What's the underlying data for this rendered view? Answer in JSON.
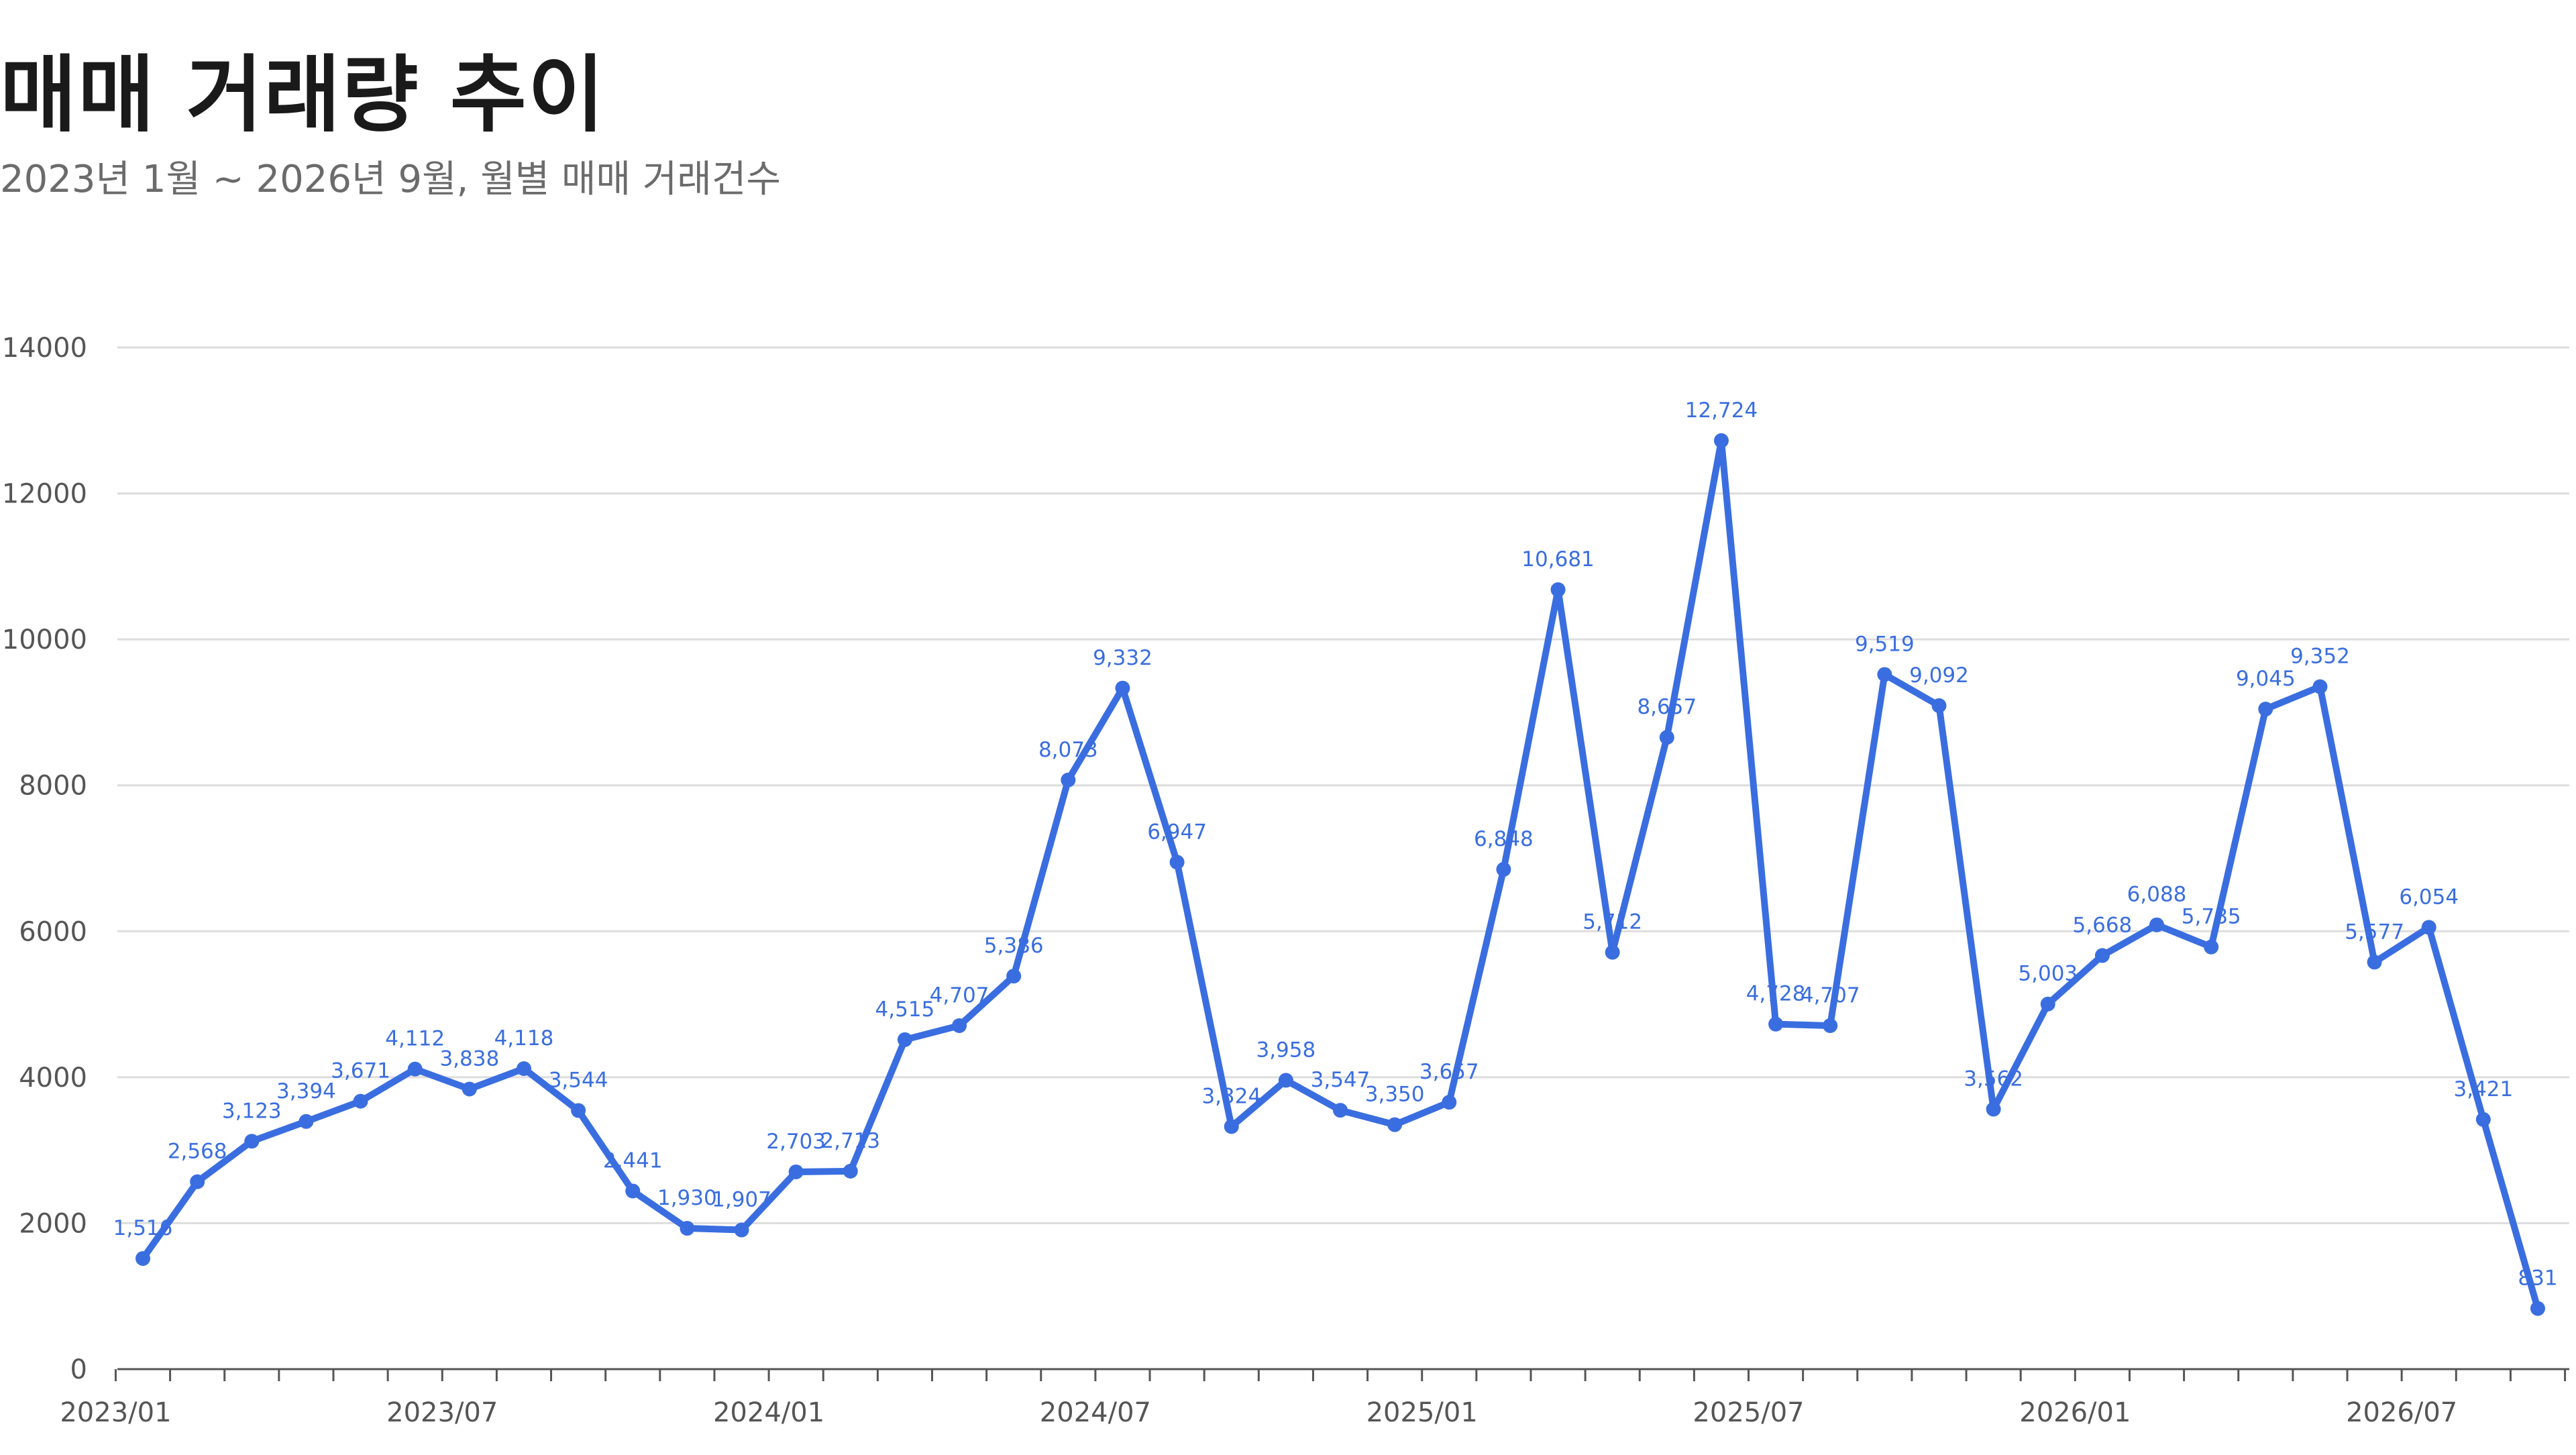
{
  "title": "매매 거래량 추이",
  "subtitle": "2023년 1월 ~ 2026년 9월, 월별 매매 거래건수",
  "colors": {
    "line": "#3a6ee0",
    "grid": "#dddddd",
    "axis": "#555555",
    "text": "#555555"
  },
  "chart_data": {
    "type": "line",
    "title": "매매 거래량 추이",
    "subtitle": "2023년 1월 ~ 2026년 9월, 월별 매매 거래건수",
    "xlabel": "",
    "ylabel": "",
    "ylim": [
      0,
      14000
    ],
    "yticks": [
      0,
      2000,
      4000,
      6000,
      8000,
      10000,
      12000,
      14000
    ],
    "grid": true,
    "x": [
      "2023/01",
      "2023/02",
      "2023/03",
      "2023/04",
      "2023/05",
      "2023/06",
      "2023/07",
      "2023/08",
      "2023/09",
      "2023/10",
      "2023/11",
      "2023/12",
      "2024/01",
      "2024/02",
      "2024/03",
      "2024/04",
      "2024/05",
      "2024/06",
      "2024/07",
      "2024/08",
      "2024/09",
      "2024/10",
      "2024/11",
      "2024/12",
      "2025/01",
      "2025/02",
      "2025/03",
      "2025/04",
      "2025/05",
      "2025/06",
      "2025/07",
      "2025/08",
      "2025/09",
      "2025/10",
      "2025/11",
      "2025/12",
      "2026/01",
      "2026/02",
      "2026/03",
      "2026/04",
      "2026/05",
      "2026/06",
      "2026/07",
      "2026/08",
      "2026/09"
    ],
    "xtick_labels": [
      "2023/01",
      "2023/07",
      "2024/01",
      "2024/07",
      "2025/01",
      "2025/07",
      "2026/01",
      "2026/07"
    ],
    "series": [
      {
        "values": [
          1516,
          2568,
          3123,
          3394,
          3671,
          4112,
          3838,
          4118,
          3544,
          2441,
          1930,
          1907,
          2703,
          2713,
          4515,
          4707,
          5386,
          8073,
          9332,
          6947,
          3324,
          3958,
          3547,
          3350,
          3657,
          6848,
          10681,
          5712,
          8657,
          12724,
          4728,
          4707,
          9519,
          9092,
          3562,
          5003,
          5668,
          6088,
          5785,
          9045,
          9352,
          5577,
          6054,
          3421,
          831
        ],
        "labels": [
          "1,516",
          "2,568",
          "3,123",
          "3,394",
          "3,671",
          "4,112",
          "3,838",
          "4,118",
          "3,544",
          "2,441",
          "1,930",
          "1,907",
          "2,703",
          "2,713",
          "4,515",
          "4,707",
          "5,386",
          "8,073",
          "9,332",
          "6,947",
          "3,324",
          "3,958",
          "3,547",
          "3,350",
          "3,657",
          "6,848",
          "10,681",
          "5,712",
          "8,657",
          "12,724",
          "4,728",
          "4,707",
          "9,519",
          "9,092",
          "3,562",
          "5,003",
          "5,668",
          "6,088",
          "5,785",
          "9,045",
          "9,352",
          "5,577",
          "6,054",
          "3,421",
          "831"
        ]
      }
    ]
  }
}
